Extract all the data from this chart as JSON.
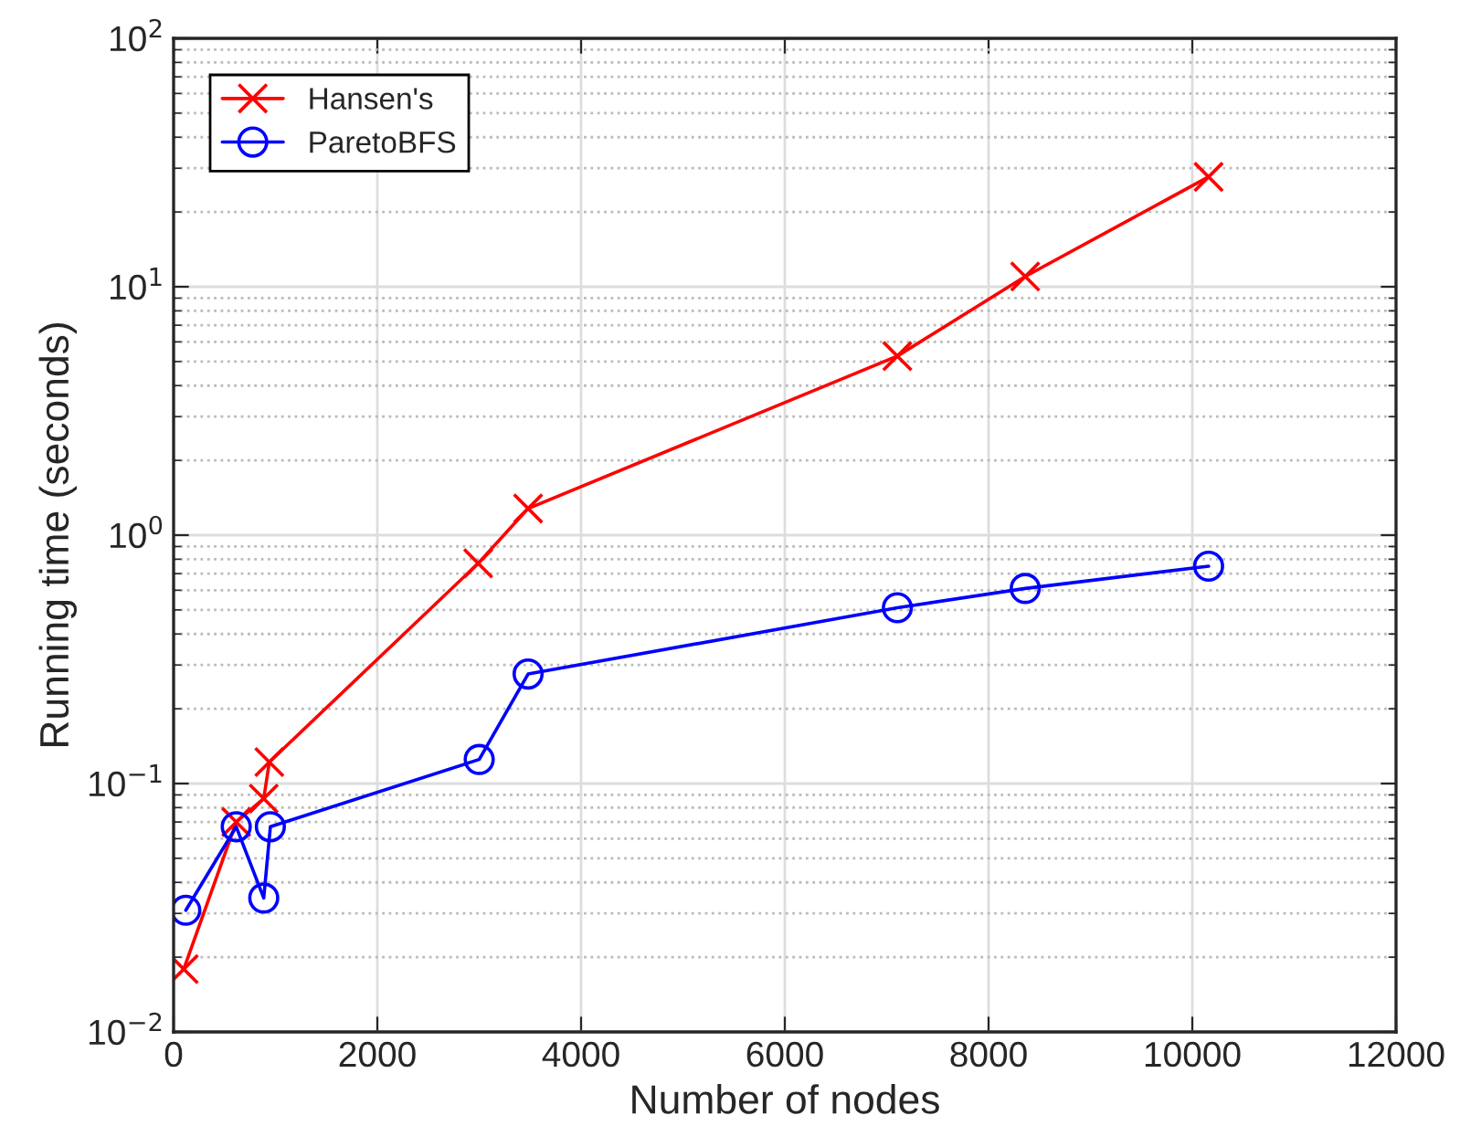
{
  "chart_data": {
    "type": "line",
    "xlabel": "Number of nodes",
    "ylabel": "Running time (seconds)",
    "series": [
      {
        "name": "Hansen's",
        "color": "#ff0000",
        "marker": "cross",
        "x": [
          100,
          615,
          885,
          940,
          2990,
          3480,
          7105,
          8360,
          10160
        ],
        "values": [
          0.0179,
          0.07,
          0.087,
          0.122,
          0.77,
          1.28,
          5.26,
          11.0,
          27.7
        ]
      },
      {
        "name": "ParetoBFS",
        "color": "#0000ff",
        "marker": "circle",
        "x": [
          120,
          615,
          885,
          950,
          3000,
          3480,
          7105,
          8360,
          10160
        ],
        "values": [
          0.0309,
          0.067,
          0.0346,
          0.067,
          0.125,
          0.276,
          0.51,
          0.61,
          0.75
        ]
      }
    ],
    "log": "y",
    "xlim": [
      0,
      12000
    ],
    "xticks": [
      0,
      2000,
      4000,
      6000,
      8000,
      10000,
      12000
    ],
    "ylim": [
      0.01,
      100
    ],
    "yticks": [
      {
        "value": 0.01,
        "label": "10$^{−2}$"
      },
      {
        "value": 0.1,
        "label": "10$^{−1}$"
      },
      {
        "value": 1,
        "label": "10$^{0}$"
      },
      {
        "value": 10,
        "label": "10$^{1}$"
      },
      {
        "value": 100,
        "label": "10$^{2}$"
      }
    ],
    "grid": true,
    "legend": "top left",
    "line_style": "solid"
  }
}
